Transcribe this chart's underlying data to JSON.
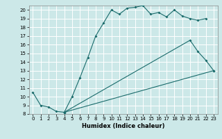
{
  "title": "",
  "xlabel": "Humidex (Indice chaleur)",
  "bg_color": "#cce8e8",
  "grid_color": "#ffffff",
  "line_color": "#1a6b6b",
  "xlim": [
    -0.5,
    23.5
  ],
  "ylim": [
    8,
    20.5
  ],
  "xticks": [
    0,
    1,
    2,
    3,
    4,
    5,
    6,
    7,
    8,
    9,
    10,
    11,
    12,
    13,
    14,
    15,
    16,
    17,
    18,
    19,
    20,
    21,
    22,
    23
  ],
  "yticks": [
    8,
    9,
    10,
    11,
    12,
    13,
    14,
    15,
    16,
    17,
    18,
    19,
    20
  ],
  "line1_x": [
    0,
    1,
    2,
    3,
    4,
    5,
    6,
    7,
    8,
    9,
    10,
    11,
    12,
    13,
    14,
    15,
    16,
    17,
    18,
    19,
    20,
    21,
    22
  ],
  "line1_y": [
    10.5,
    9.0,
    8.8,
    8.3,
    8.2,
    10.0,
    12.2,
    14.5,
    17.0,
    18.5,
    20.0,
    19.5,
    20.2,
    20.3,
    20.5,
    19.5,
    19.7,
    19.2,
    20.0,
    19.3,
    19.0,
    18.8,
    19.0
  ],
  "line2_x": [
    4,
    20,
    21,
    22,
    23
  ],
  "line2_y": [
    8.2,
    16.5,
    15.2,
    14.2,
    13.0
  ],
  "line3_x": [
    4,
    23
  ],
  "line3_y": [
    8.2,
    13.0
  ],
  "xlabel_fontsize": 6,
  "tick_fontsize": 5,
  "linewidth": 0.8,
  "markersize": 2.0
}
